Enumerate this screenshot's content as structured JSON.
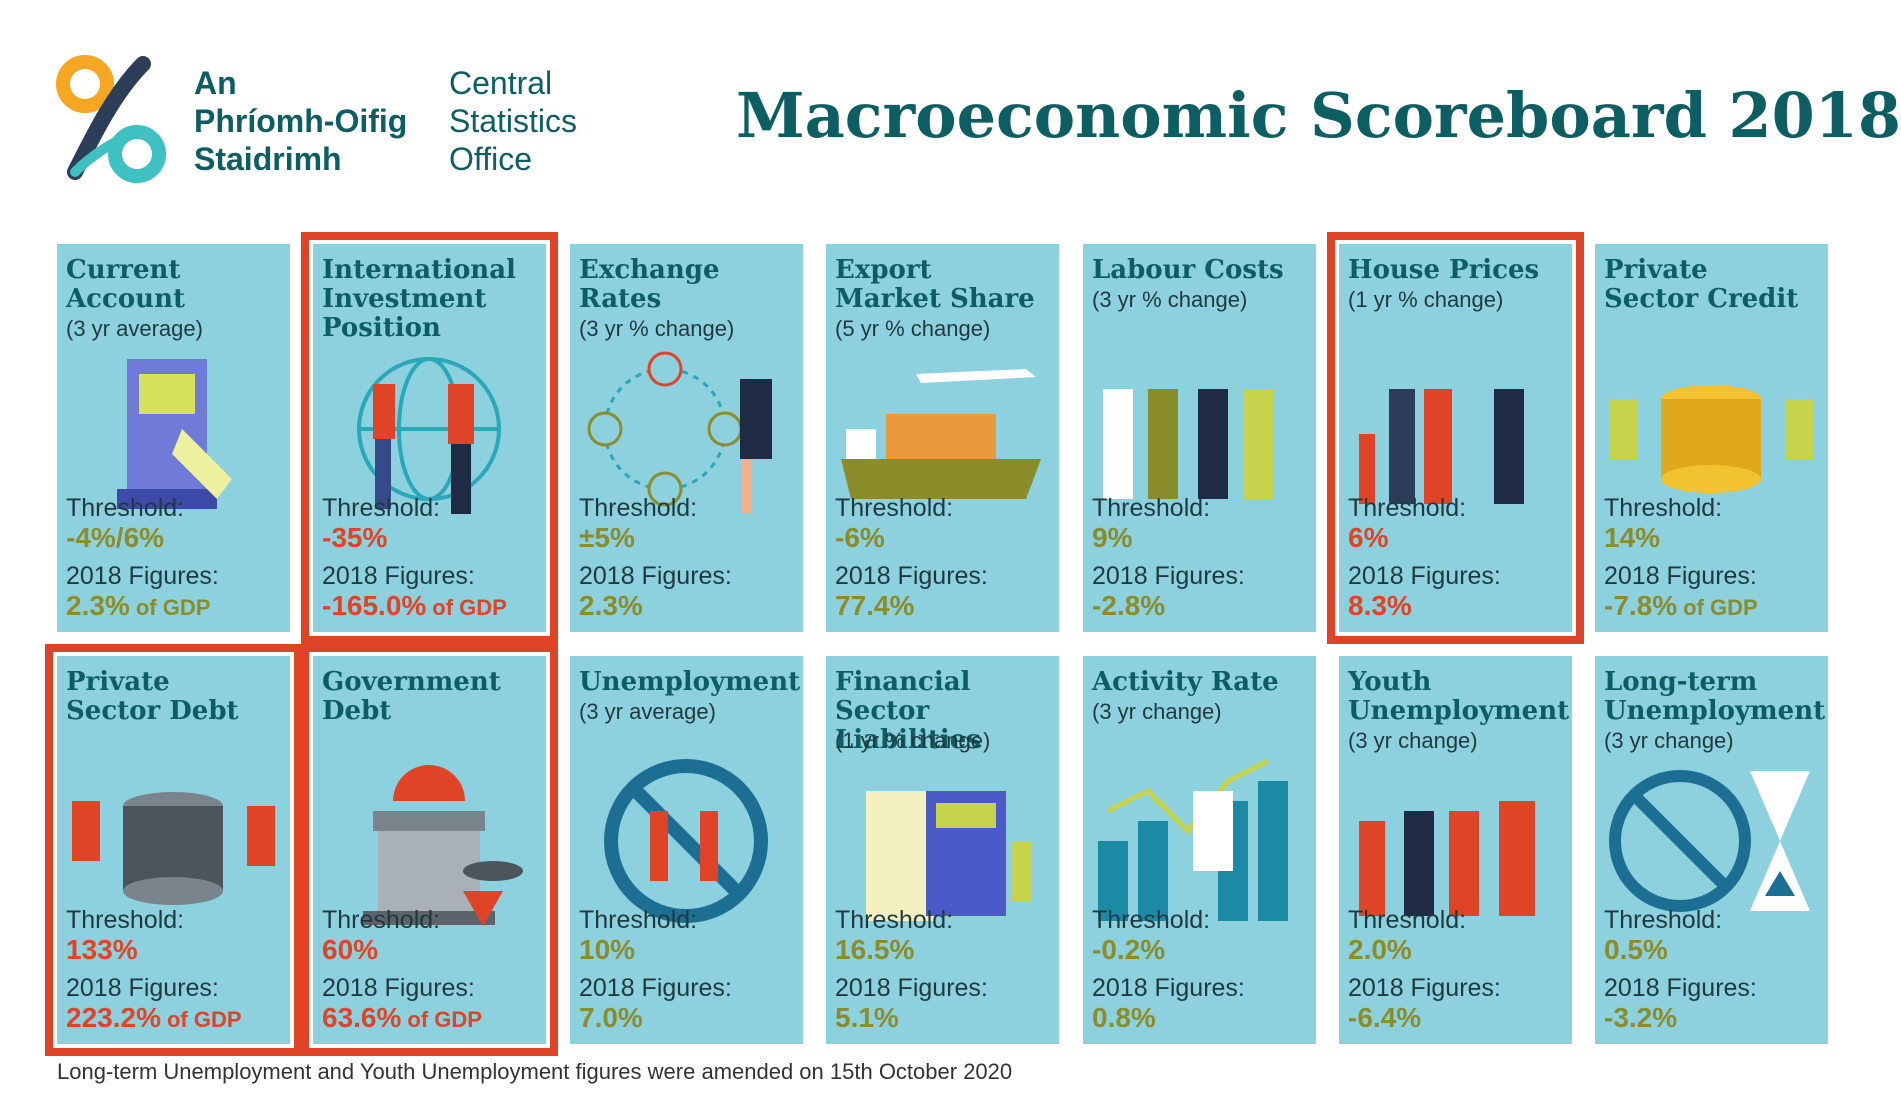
{
  "header": {
    "org_irish": [
      "An",
      "Phríomh-Oifig",
      "Staidrimh"
    ],
    "org_english": [
      "Central",
      "Statistics",
      "Office"
    ],
    "title": "Macroeconomic Scoreboard 2018"
  },
  "labels": {
    "threshold": "Threshold:",
    "figures": "2018 Figures:"
  },
  "colors": {
    "tile": "#8dd0de",
    "highlight": "#e04427",
    "title": "#0d5e63",
    "value": "#8b8d2b",
    "value_alert": "#e04427"
  },
  "tiles": [
    {
      "title": "Current\nAccount",
      "subtitle": "(3 yr average)",
      "threshold": "-4%/6%",
      "figure": "2.3%",
      "unit": "of GDP",
      "highlight": false,
      "icon": "atm-icon"
    },
    {
      "title": "International\nInvestment\nPosition",
      "subtitle": "",
      "threshold": "-35%",
      "figure": "-165.0%",
      "unit": "of GDP",
      "highlight": true,
      "icon": "globe-handshake-icon"
    },
    {
      "title": "Exchange\nRates",
      "subtitle": "(3 yr % change)",
      "threshold": "±5%",
      "figure": "2.3%",
      "unit": "",
      "highlight": false,
      "icon": "currency-exchange-icon"
    },
    {
      "title": "Export\nMarket Share",
      "subtitle": "(5 yr % change)",
      "threshold": "-6%",
      "figure": "77.4%",
      "unit": "",
      "highlight": false,
      "icon": "cargo-ship-icon"
    },
    {
      "title": "Labour Costs",
      "subtitle": "(3 yr % change)",
      "threshold": "9%",
      "figure": "-2.8%",
      "unit": "",
      "highlight": false,
      "icon": "workers-icon"
    },
    {
      "title": "House Prices",
      "subtitle": "(1 yr % change)",
      "threshold": "6%",
      "figure": "8.3%",
      "unit": "",
      "highlight": true,
      "icon": "family-keys-icon"
    },
    {
      "title": "Private\nSector Credit",
      "subtitle": "",
      "threshold": "14%",
      "figure": "-7.8%",
      "unit": "of GDP",
      "highlight": false,
      "icon": "gold-coins-icon"
    },
    {
      "title": "Private\nSector Debt",
      "subtitle": "",
      "threshold": "133%",
      "figure": "223.2%",
      "unit": "of GDP",
      "highlight": true,
      "icon": "grey-coins-icon"
    },
    {
      "title": "Government\nDebt",
      "subtitle": "",
      "threshold": "60%",
      "figure": "63.6%",
      "unit": "of GDP",
      "highlight": true,
      "icon": "government-building-icon"
    },
    {
      "title": "Unemployment",
      "subtitle": "(3 yr average)",
      "threshold": "10%",
      "figure": "7.0%",
      "unit": "",
      "highlight": false,
      "icon": "no-workers-icon"
    },
    {
      "title": "Financial Sector\nLiabilities",
      "subtitle": "(1 yr % change)",
      "threshold": "16.5%",
      "figure": "5.1%",
      "unit": "",
      "highlight": false,
      "icon": "calculator-icon"
    },
    {
      "title": "Activity Rate",
      "subtitle": "(3 yr change)",
      "threshold": "-0.2%",
      "figure": "0.8%",
      "unit": "",
      "highlight": false,
      "icon": "bar-chart-icon"
    },
    {
      "title": "Youth\nUnemployment",
      "subtitle": "(3 yr change)",
      "threshold": "2.0%",
      "figure": "-6.4%",
      "unit": "",
      "highlight": false,
      "icon": "youth-phones-icon"
    },
    {
      "title": "Long-term\nUnemployment",
      "subtitle": "(3 yr change)",
      "threshold": "0.5%",
      "figure": "-3.2%",
      "unit": "",
      "highlight": false,
      "icon": "hourglass-icon"
    }
  ],
  "footnote": "Long-term Unemployment and Youth Unemployment figures were amended on 15th October 2020"
}
